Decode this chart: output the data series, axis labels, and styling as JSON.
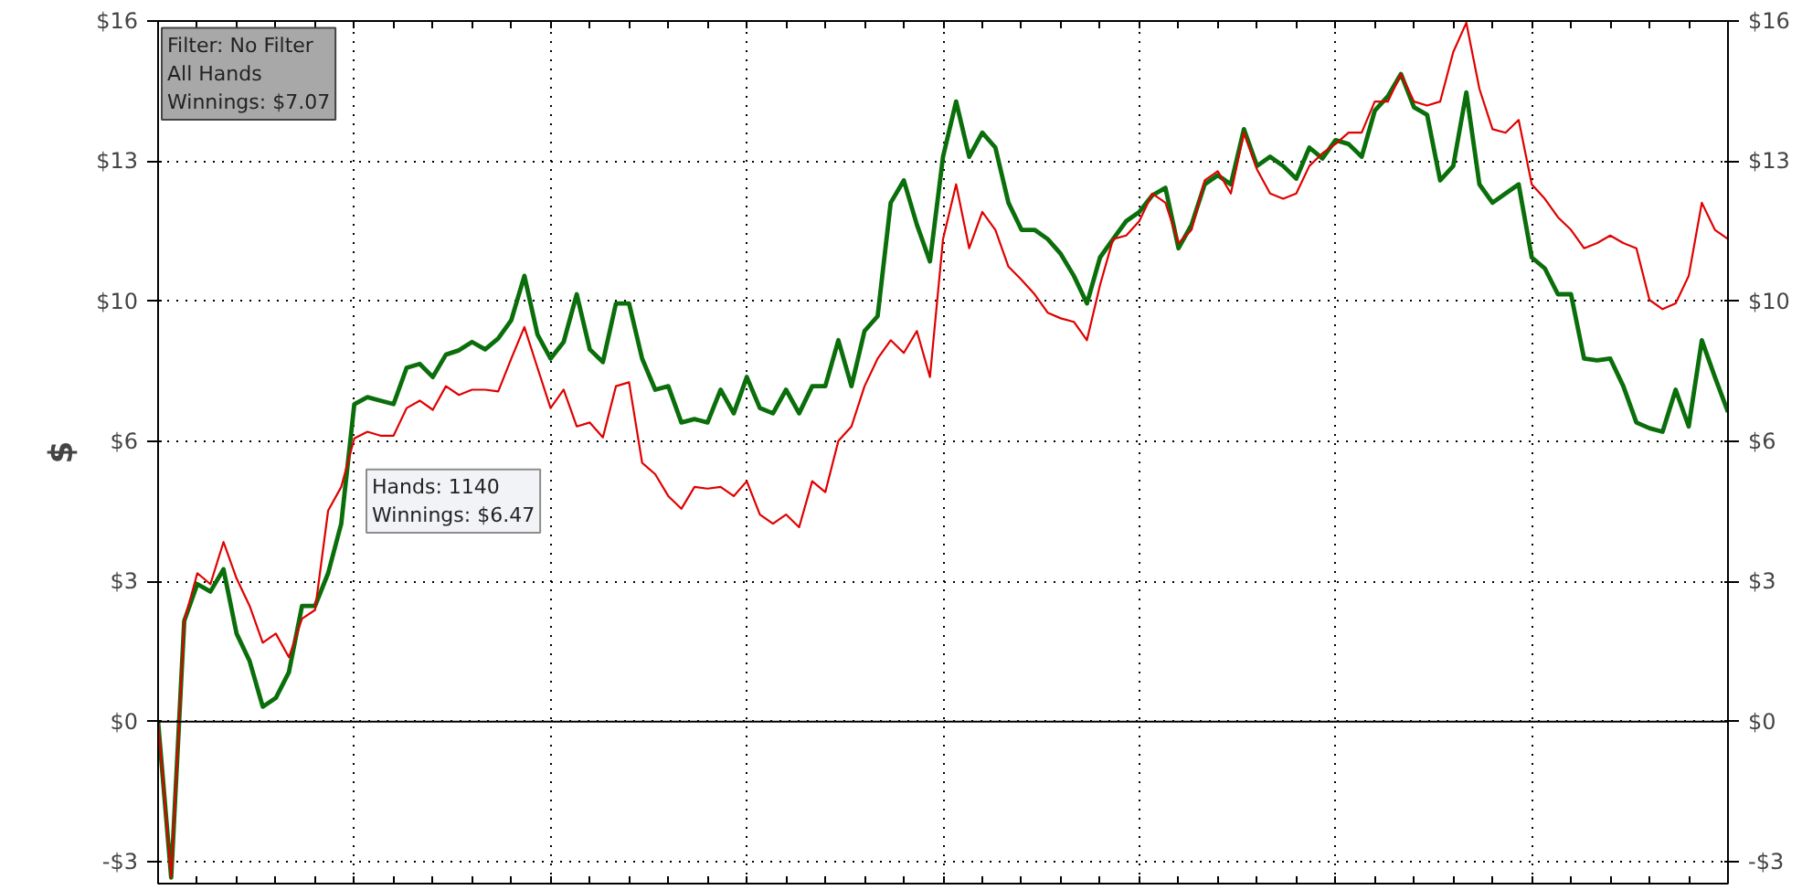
{
  "chart_data": {
    "type": "line",
    "ylabel": "$",
    "categories": [
      null,
      null,
      null,
      null,
      null,
      null,
      null,
      null,
      null,
      null,
      null,
      null,
      null,
      null,
      null,
      null,
      null,
      null,
      null,
      null,
      null,
      null,
      null,
      null,
      null,
      null,
      null,
      null,
      null,
      null,
      null,
      null,
      null,
      null,
      null,
      null,
      null,
      null,
      null,
      null,
      null,
      null,
      null,
      null,
      null,
      null,
      null,
      null,
      null,
      null,
      null,
      null,
      null,
      null,
      null,
      null,
      null,
      null,
      null,
      null,
      null,
      null,
      null,
      null,
      null,
      null,
      null,
      null,
      null,
      null,
      null,
      null,
      null,
      null,
      null,
      null,
      null,
      null,
      null,
      null,
      null,
      null,
      null,
      null,
      null,
      null,
      null,
      null,
      null,
      null,
      null,
      null,
      null,
      null,
      null,
      null,
      null,
      null,
      null,
      null,
      null,
      null,
      null,
      null,
      null,
      null,
      null,
      null,
      null,
      null,
      null,
      null,
      null,
      null,
      null,
      null,
      null,
      null,
      null,
      null,
      null
    ],
    "series": [
      {
        "color": "#0a6e0a",
        "values": [
          0,
          -3.56,
          2.3,
          3.14,
          2.97,
          3.48,
          2.01,
          1.38,
          0.34,
          0.54,
          1.13,
          2.64,
          2.64,
          3.39,
          4.52,
          7.25,
          7.41,
          7.33,
          7.25,
          8.08,
          8.17,
          7.87,
          8.38,
          8.48,
          8.67,
          8.5,
          8.75,
          9.17,
          10.18,
          8.84,
          8.29,
          8.67,
          9.76,
          8.5,
          8.21,
          9.55,
          9.55,
          8.29,
          7.58,
          7.66,
          6.83,
          6.91,
          6.83,
          7.58,
          7.04,
          7.87,
          7.16,
          7.04,
          7.58,
          7.04,
          7.66,
          7.66,
          8.71,
          7.66,
          8.92,
          9.26,
          11.85,
          12.36,
          11.35,
          10.51,
          12.9,
          14.16,
          12.9,
          13.45,
          13.11,
          11.85,
          11.23,
          11.23,
          11.02,
          10.68,
          10.18,
          9.55,
          10.6,
          11.02,
          11.43,
          11.64,
          12.02,
          12.19,
          10.81,
          11.35,
          12.27,
          12.48,
          12.27,
          13.53,
          12.69,
          12.9,
          12.69,
          12.4,
          13.11,
          12.86,
          13.28,
          13.19,
          12.9,
          13.95,
          14.28,
          14.79,
          14.03,
          13.86,
          12.36,
          12.69,
          14.37,
          12.27,
          11.85,
          12.06,
          12.27,
          10.6,
          10.35,
          9.76,
          9.76,
          8.29,
          8.25,
          8.29,
          7.66,
          6.83,
          6.7,
          6.62,
          7.58,
          6.74,
          8.71,
          7.87,
          7.07
        ]
      },
      {
        "color": "#e00000",
        "values": [
          0,
          -3.56,
          2.3,
          3.39,
          3.14,
          4.1,
          3.27,
          2.64,
          1.8,
          2.01,
          1.47,
          2.35,
          2.55,
          4.82,
          5.36,
          6.47,
          6.62,
          6.53,
          6.53,
          7.16,
          7.33,
          7.12,
          7.66,
          7.46,
          7.58,
          7.58,
          7.54,
          8.29,
          9.01,
          8.08,
          7.16,
          7.58,
          6.74,
          6.83,
          6.49,
          7.66,
          7.75,
          5.91,
          5.65,
          5.15,
          4.86,
          5.36,
          5.32,
          5.36,
          5.15,
          5.49,
          4.73,
          4.52,
          4.73,
          4.44,
          5.49,
          5.24,
          6.41,
          6.74,
          7.66,
          8.29,
          8.71,
          8.42,
          8.92,
          7.87,
          11.02,
          12.27,
          10.81,
          11.64,
          11.23,
          10.39,
          10.09,
          9.76,
          9.34,
          9.21,
          9.13,
          8.71,
          9.97,
          11.02,
          11.1,
          11.43,
          12.06,
          11.85,
          10.93,
          11.23,
          12.36,
          12.57,
          12.06,
          13.45,
          12.61,
          12.06,
          11.94,
          12.06,
          12.69,
          12.98,
          13.19,
          13.45,
          13.45,
          14.16,
          14.16,
          14.79,
          14.16,
          14.07,
          14.16,
          15.29,
          15.96,
          14.45,
          13.53,
          13.45,
          13.74,
          12.27,
          11.94,
          11.52,
          11.23,
          10.81,
          10.93,
          11.1,
          10.93,
          10.81,
          9.63,
          9.42,
          9.55,
          10.18,
          11.85,
          11.23,
          11.02
        ]
      }
    ],
    "ylim": [
      -3.7,
      16
    ],
    "yticks": [
      {
        "value": -3.2,
        "label": "-$3"
      },
      {
        "value": 0,
        "label": "$0"
      },
      {
        "value": 3.2,
        "label": "$3"
      },
      {
        "value": 6.4,
        "label": "$6"
      },
      {
        "value": 9.6,
        "label": "$10"
      },
      {
        "value": 12.8,
        "label": "$13"
      },
      {
        "value": 16,
        "label": "$16"
      }
    ],
    "y2lim": [
      -3.7,
      16
    ],
    "y2ticks": [
      {
        "value": -3.2,
        "label": "-$3"
      },
      {
        "value": 0,
        "label": "$0"
      },
      {
        "value": 3.2,
        "label": "$3"
      },
      {
        "value": 6.4,
        "label": "$6"
      },
      {
        "value": 9.6,
        "label": "$10"
      },
      {
        "value": 12.8,
        "label": "$13"
      },
      {
        "value": 16,
        "label": "$16"
      }
    ],
    "ref_lines": [
      {
        "axis": "y",
        "value": 0,
        "color": "#000000"
      }
    ],
    "grid": true,
    "tick_labels": "y",
    "marker": "none",
    "line_style": "solid",
    "annotations": [
      "Filter: No Filter\nAll Hands\nWinnings: $7.07",
      "Hands: 1140\nWinnings: $6.47"
    ]
  }
}
